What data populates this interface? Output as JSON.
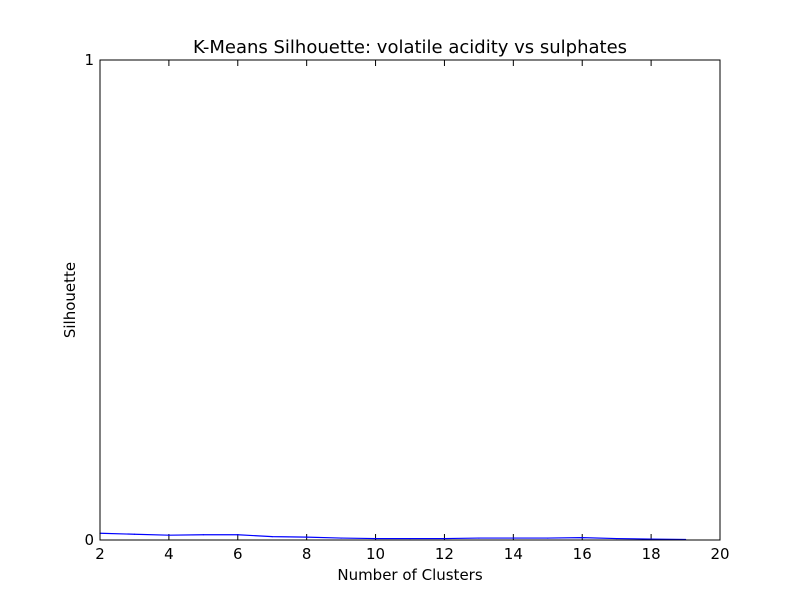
{
  "chart_data": {
    "type": "line",
    "title": "K-Means Silhouette: volatile acidity vs sulphates",
    "xlabel": "Number of Clusters",
    "ylabel": "Silhouette",
    "xlim": [
      2,
      20
    ],
    "ylim": [
      0,
      1
    ],
    "x_ticks": [
      2,
      4,
      6,
      8,
      10,
      12,
      14,
      16,
      18,
      20
    ],
    "y_ticks": [
      0,
      1
    ],
    "grid": false,
    "legend": "none",
    "series": [
      {
        "color": "#0000ff",
        "x": [
          2,
          3,
          4,
          5,
          6,
          7,
          8,
          9,
          10,
          11,
          12,
          13,
          14,
          15,
          16,
          17,
          18,
          19
        ],
        "values": [
          0.014,
          0.012,
          0.01,
          0.011,
          0.011,
          0.007,
          0.006,
          0.004,
          0.003,
          0.003,
          0.003,
          0.004,
          0.004,
          0.004,
          0.005,
          0.003,
          0.002,
          0.001
        ]
      }
    ]
  }
}
